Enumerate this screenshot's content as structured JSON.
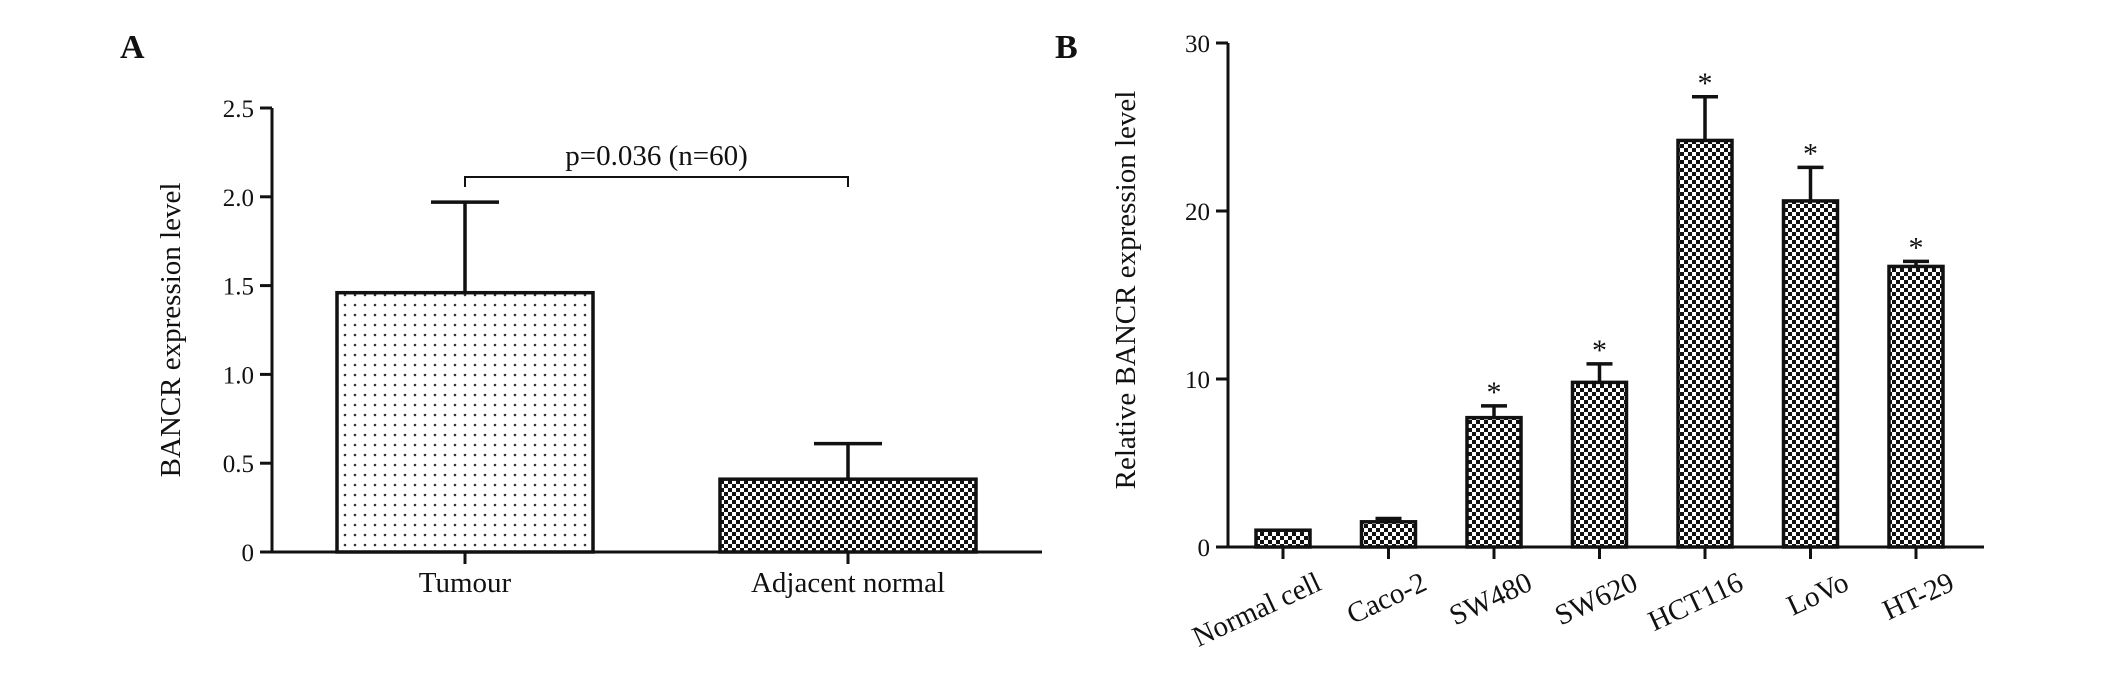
{
  "chart_data": [
    {
      "panel_label": "A",
      "type": "bar",
      "categories": [
        "Tumour",
        "Adjacent normal"
      ],
      "values": [
        1.46,
        0.41
      ],
      "errors": [
        0.51,
        0.2
      ],
      "ylabel": "BANCR expression level",
      "ylim": [
        0,
        2.5
      ],
      "yticks": [
        "0",
        "0.5",
        "1.0",
        "1.5",
        "2.0",
        "2.5"
      ],
      "annotation": "p=0.036 (n=60)",
      "grid": false,
      "colors": {
        "bar_edge": "#111111",
        "bar_fill": "#ffffff",
        "pattern_dots": "#333333",
        "pattern_check": "#111111"
      }
    },
    {
      "panel_label": "B",
      "type": "bar",
      "categories": [
        "Normal cell",
        "Caco-2",
        "SW480",
        "SW620",
        "HCT116",
        "LoVo",
        "HT-29"
      ],
      "values": [
        1.0,
        1.5,
        7.7,
        9.8,
        24.2,
        20.6,
        16.7
      ],
      "errors": [
        0,
        0.2,
        0.7,
        1.1,
        2.6,
        2.0,
        0.3
      ],
      "significance": [
        "",
        "",
        "*",
        "*",
        "*",
        "*",
        "*"
      ],
      "ylabel": "Relative BANCR expression level",
      "ylim": [
        0,
        30
      ],
      "yticks": [
        "0",
        "10",
        "20",
        "30"
      ],
      "grid": false,
      "colors": {
        "bar_edge": "#111111",
        "pattern_check": "#111111"
      }
    }
  ]
}
